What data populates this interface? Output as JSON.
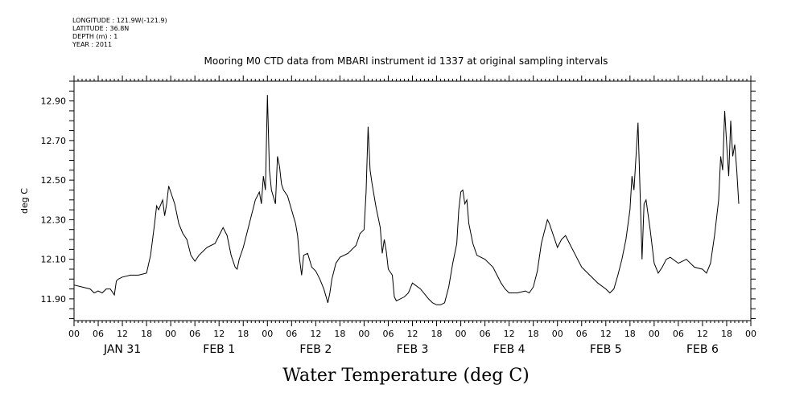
{
  "metadata": {
    "longitude": "LONGITUDE : 121.9W(-121.9)",
    "latitude": "LATITUDE : 36.8N",
    "depth": "DEPTH (m) : 1",
    "year": "YEAR : 2011"
  },
  "chart_data": {
    "type": "line",
    "title": "Mooring M0 CTD data from MBARI instrument id 1337 at original sampling intervals",
    "xlabel": "Water Temperature (deg C)",
    "ylabel": "deg C",
    "ylim": [
      11.79,
      13.0
    ],
    "xlim_hours": [
      0,
      168
    ],
    "y_ticks": [
      "11.90",
      "12.10",
      "12.30",
      "12.50",
      "12.70",
      "12.90"
    ],
    "hour_labels": [
      "00",
      "06",
      "12",
      "18",
      "00",
      "06",
      "12",
      "18",
      "00",
      "06",
      "12",
      "18",
      "00",
      "06",
      "12",
      "18",
      "00",
      "06",
      "12",
      "18",
      "00",
      "06",
      "12",
      "18",
      "00",
      "06",
      "12",
      "18",
      "00"
    ],
    "day_labels": [
      "JAN 31",
      "FEB  1",
      "FEB  2",
      "FEB  3",
      "FEB  4",
      "FEB  5",
      "FEB  6"
    ],
    "series": [
      {
        "values": [
          [
            0,
            11.97
          ],
          [
            2,
            11.96
          ],
          [
            4,
            11.95
          ],
          [
            5,
            11.93
          ],
          [
            6,
            11.94
          ],
          [
            7,
            11.93
          ],
          [
            8,
            11.95
          ],
          [
            9,
            11.95
          ],
          [
            10,
            11.92
          ],
          [
            10.5,
            11.99
          ],
          [
            11,
            12.0
          ],
          [
            12,
            12.01
          ],
          [
            14,
            12.02
          ],
          [
            16,
            12.02
          ],
          [
            18,
            12.03
          ],
          [
            19,
            12.12
          ],
          [
            20,
            12.28
          ],
          [
            20.5,
            12.37
          ],
          [
            21,
            12.35
          ],
          [
            22,
            12.4
          ],
          [
            22.5,
            12.32
          ],
          [
            23,
            12.38
          ],
          [
            23.5,
            12.47
          ],
          [
            24,
            12.44
          ],
          [
            25,
            12.38
          ],
          [
            26,
            12.28
          ],
          [
            27,
            12.23
          ],
          [
            28,
            12.2
          ],
          [
            29,
            12.12
          ],
          [
            30,
            12.09
          ],
          [
            31,
            12.12
          ],
          [
            33,
            12.16
          ],
          [
            35,
            12.18
          ],
          [
            36,
            12.22
          ],
          [
            37,
            12.26
          ],
          [
            38,
            12.22
          ],
          [
            39,
            12.12
          ],
          [
            40,
            12.06
          ],
          [
            40.5,
            12.05
          ],
          [
            41,
            12.1
          ],
          [
            42,
            12.16
          ],
          [
            43,
            12.24
          ],
          [
            44,
            12.32
          ],
          [
            45,
            12.4
          ],
          [
            46,
            12.44
          ],
          [
            46.5,
            12.38
          ],
          [
            47,
            12.52
          ],
          [
            47.5,
            12.45
          ],
          [
            48,
            12.93
          ],
          [
            48.5,
            12.55
          ],
          [
            49,
            12.45
          ],
          [
            50,
            12.38
          ],
          [
            50.5,
            12.62
          ],
          [
            51,
            12.57
          ],
          [
            51.5,
            12.48
          ],
          [
            52,
            12.45
          ],
          [
            53,
            12.42
          ],
          [
            54,
            12.35
          ],
          [
            55,
            12.28
          ],
          [
            55.5,
            12.22
          ],
          [
            56,
            12.1
          ],
          [
            56.5,
            12.02
          ],
          [
            57,
            12.12
          ],
          [
            58,
            12.13
          ],
          [
            59,
            12.06
          ],
          [
            60,
            12.04
          ],
          [
            61,
            12.0
          ],
          [
            62,
            11.95
          ],
          [
            63,
            11.88
          ],
          [
            63.5,
            11.93
          ],
          [
            64,
            12.0
          ],
          [
            65,
            12.08
          ],
          [
            66,
            12.11
          ],
          [
            68,
            12.13
          ],
          [
            70,
            12.17
          ],
          [
            71,
            12.23
          ],
          [
            72,
            12.25
          ],
          [
            72.5,
            12.44
          ],
          [
            73,
            12.77
          ],
          [
            73.5,
            12.55
          ],
          [
            74,
            12.48
          ],
          [
            75,
            12.36
          ],
          [
            76,
            12.26
          ],
          [
            76.5,
            12.13
          ],
          [
            77,
            12.2
          ],
          [
            77.5,
            12.14
          ],
          [
            78,
            12.05
          ],
          [
            79,
            12.02
          ],
          [
            79.5,
            11.91
          ],
          [
            80,
            11.89
          ],
          [
            82,
            11.91
          ],
          [
            83,
            11.93
          ],
          [
            84,
            11.98
          ],
          [
            86,
            11.95
          ],
          [
            88,
            11.9
          ],
          [
            89,
            11.88
          ],
          [
            90,
            11.87
          ],
          [
            91,
            11.87
          ],
          [
            92,
            11.88
          ],
          [
            93,
            11.96
          ],
          [
            94,
            12.08
          ],
          [
            95,
            12.18
          ],
          [
            95.5,
            12.35
          ],
          [
            96,
            12.44
          ],
          [
            96.5,
            12.45
          ],
          [
            97,
            12.38
          ],
          [
            97.5,
            12.4
          ],
          [
            98,
            12.28
          ],
          [
            99,
            12.18
          ],
          [
            100,
            12.12
          ],
          [
            102,
            12.1
          ],
          [
            104,
            12.06
          ],
          [
            105,
            12.02
          ],
          [
            106,
            11.98
          ],
          [
            107,
            11.95
          ],
          [
            108,
            11.93
          ],
          [
            110,
            11.93
          ],
          [
            112,
            11.94
          ],
          [
            113,
            11.93
          ],
          [
            114,
            11.96
          ],
          [
            115,
            12.04
          ],
          [
            116,
            12.18
          ],
          [
            117,
            12.26
          ],
          [
            117.5,
            12.3
          ],
          [
            118,
            12.28
          ],
          [
            119,
            12.22
          ],
          [
            120,
            12.16
          ],
          [
            121,
            12.2
          ],
          [
            122,
            12.22
          ],
          [
            123,
            12.18
          ],
          [
            124,
            12.14
          ],
          [
            126,
            12.06
          ],
          [
            128,
            12.02
          ],
          [
            130,
            11.98
          ],
          [
            132,
            11.95
          ],
          [
            133,
            11.93
          ],
          [
            134,
            11.95
          ],
          [
            135,
            12.02
          ],
          [
            136,
            12.1
          ],
          [
            137,
            12.2
          ],
          [
            138,
            12.35
          ],
          [
            138.5,
            12.52
          ],
          [
            139,
            12.45
          ],
          [
            139.5,
            12.62
          ],
          [
            140,
            12.79
          ],
          [
            140.5,
            12.45
          ],
          [
            141,
            12.1
          ],
          [
            141.5,
            12.38
          ],
          [
            142,
            12.4
          ],
          [
            143,
            12.25
          ],
          [
            144,
            12.08
          ],
          [
            145,
            12.03
          ],
          [
            146,
            12.06
          ],
          [
            147,
            12.1
          ],
          [
            148,
            12.11
          ],
          [
            150,
            12.08
          ],
          [
            152,
            12.1
          ],
          [
            154,
            12.06
          ],
          [
            156,
            12.05
          ],
          [
            157,
            12.03
          ],
          [
            158,
            12.08
          ],
          [
            159,
            12.22
          ],
          [
            160,
            12.4
          ],
          [
            160.5,
            12.62
          ],
          [
            161,
            12.55
          ],
          [
            161.5,
            12.85
          ],
          [
            162,
            12.68
          ],
          [
            162.5,
            12.52
          ],
          [
            163,
            12.8
          ],
          [
            163.5,
            12.62
          ],
          [
            164,
            12.68
          ],
          [
            164.5,
            12.55
          ],
          [
            165,
            12.38
          ]
        ]
      }
    ]
  }
}
